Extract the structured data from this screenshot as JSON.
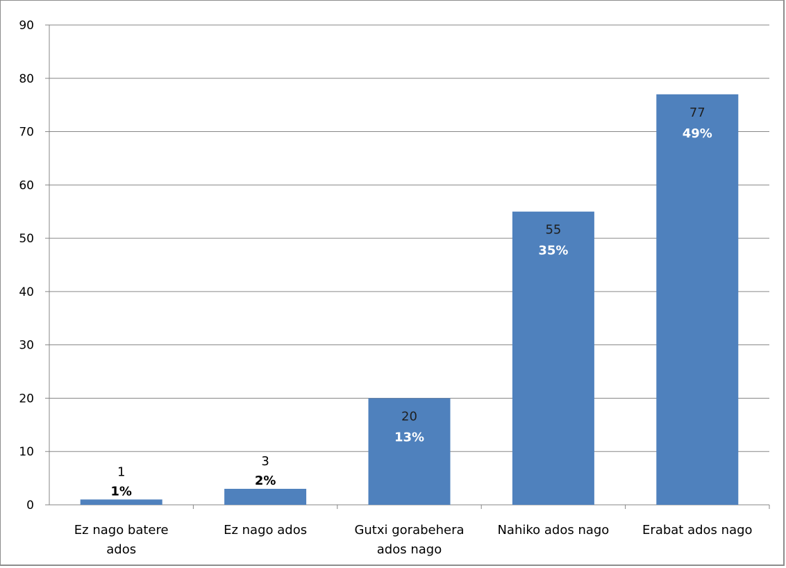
{
  "chart_data": {
    "type": "bar",
    "categories": [
      [
        "Ez nago batere",
        "ados"
      ],
      [
        "Ez nago ados"
      ],
      [
        "Gutxi gorabehera",
        "ados nago"
      ],
      [
        "Nahiko ados nago"
      ],
      [
        "Erabat ados nago"
      ]
    ],
    "values": [
      1,
      3,
      20,
      55,
      77
    ],
    "percent_labels": [
      "1%",
      "2%",
      "13%",
      "35%",
      "49%"
    ],
    "ylim": [
      0,
      90
    ],
    "yticks": [
      0,
      10,
      20,
      30,
      40,
      50,
      60,
      70,
      80,
      90
    ],
    "grid": true,
    "title": "",
    "xlabel": "",
    "ylabel": "",
    "colors": {
      "bar": "#4f81bd",
      "grid": "#868686",
      "label_inside": "#ffffff",
      "label_outside": "#000000",
      "label_number_inside": "#1f1f1f"
    }
  }
}
